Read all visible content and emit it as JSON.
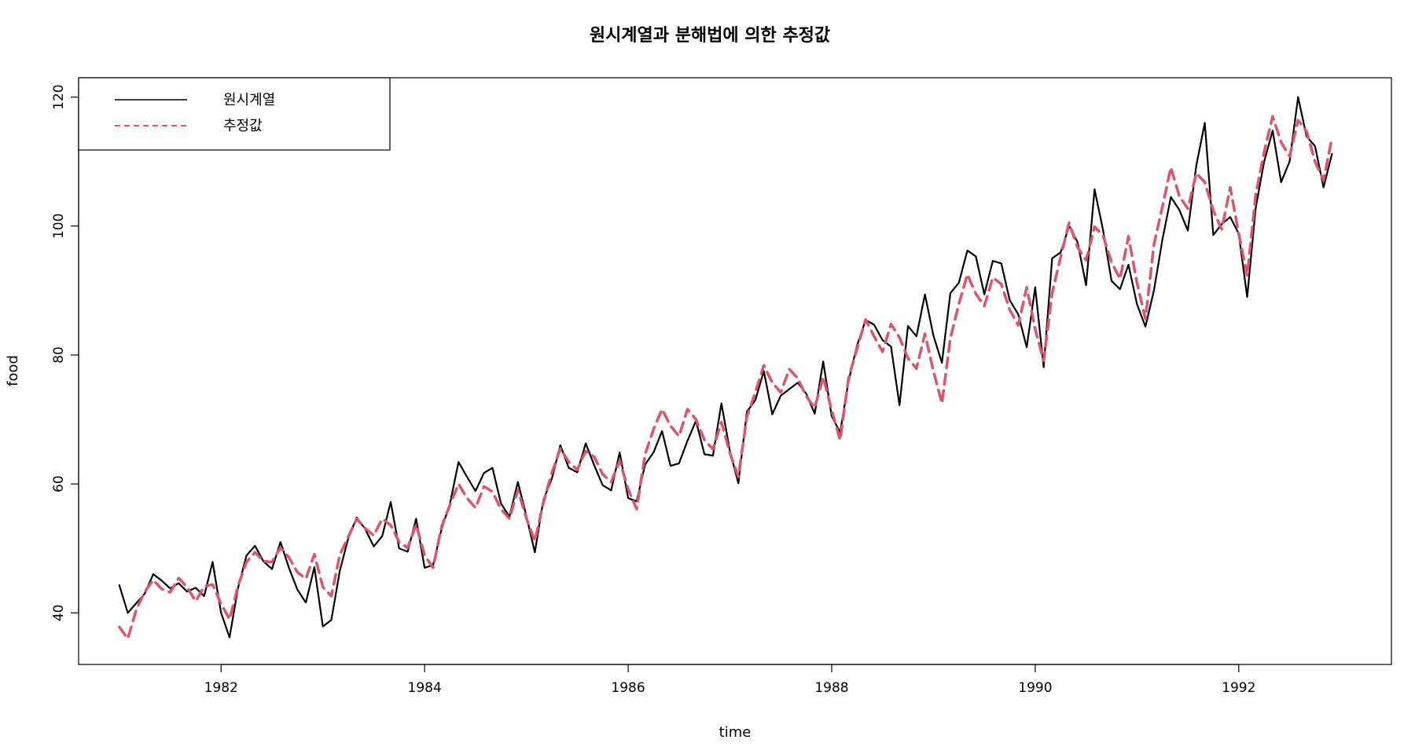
{
  "chart_data": {
    "type": "line",
    "title": "원시계열과 분해법에 의한 추정값",
    "xlabel": "time",
    "ylabel": "food",
    "xlim": [
      1980.6,
      1993.5
    ],
    "ylim": [
      32,
      123
    ],
    "x_ticks": [
      1982,
      1984,
      1986,
      1988,
      1990,
      1992
    ],
    "y_ticks": [
      40,
      60,
      80,
      100,
      120
    ],
    "x_tick_labels": [
      "1982",
      "1984",
      "1986",
      "1988",
      "1990",
      "1992"
    ],
    "y_tick_labels": [
      "40",
      "60",
      "80",
      "100",
      "120"
    ],
    "x_start": 1981.0,
    "x_step": 0.08333,
    "legend": {
      "position": "top-left"
    },
    "series": [
      {
        "name": "원시계열",
        "color": "#000000",
        "style": "solid",
        "values": [
          44.3,
          40.0,
          41.5,
          43.0,
          46.0,
          45.0,
          43.8,
          44.6,
          43.3,
          43.9,
          42.6,
          47.9,
          40.0,
          36.2,
          43.9,
          48.9,
          50.4,
          48.0,
          46.8,
          51.0,
          47.0,
          43.6,
          41.6,
          47.1,
          37.9,
          38.9,
          46.5,
          51.6,
          54.8,
          53.0,
          50.3,
          51.9,
          57.2,
          50.0,
          49.5,
          54.6,
          47.0,
          47.4,
          53.0,
          57.0,
          63.4,
          61.1,
          58.9,
          61.7,
          62.5,
          57.0,
          54.9,
          60.3,
          55.0,
          49.4,
          57.5,
          60.8,
          66.0,
          62.5,
          61.8,
          66.3,
          62.9,
          59.8,
          59.0,
          64.9,
          57.8,
          57.3,
          63.0,
          64.9,
          68.2,
          62.8,
          63.2,
          66.7,
          69.8,
          64.6,
          64.4,
          72.5,
          65.1,
          60.1,
          71.2,
          73.0,
          77.5,
          70.8,
          73.7,
          74.7,
          75.7,
          74.0,
          70.9,
          79.0,
          70.5,
          68.0,
          76.0,
          81.5,
          85.4,
          84.7,
          82.3,
          81.3,
          72.2,
          84.5,
          82.9,
          89.4,
          83.0,
          78.8,
          89.6,
          91.2,
          96.2,
          95.3,
          89.4,
          94.6,
          94.2,
          88.5,
          86.3,
          81.2,
          90.5,
          78.1,
          95.0,
          95.9,
          100.0,
          97.5,
          90.8,
          105.7,
          99.4,
          91.5,
          90.2,
          94.0,
          87.9,
          84.4,
          90.0,
          97.9,
          104.5,
          102.5,
          99.3,
          109.4,
          116.0,
          98.6,
          100.3,
          101.4,
          98.8,
          89.0,
          102.8,
          110.0,
          114.8,
          106.8,
          110.0,
          120.0,
          113.9,
          112.4,
          106.0,
          111.2
        ]
      },
      {
        "name": "추정값",
        "color": "#DF536B",
        "style": "dashed",
        "values": [
          37.8,
          36.0,
          40.5,
          43.3,
          45.1,
          43.7,
          43.2,
          45.4,
          44.0,
          41.8,
          44.1,
          44.4,
          41.4,
          39.0,
          44.2,
          47.9,
          49.4,
          48.0,
          47.9,
          50.1,
          48.6,
          46.3,
          45.3,
          49.1,
          44.0,
          42.6,
          49.0,
          51.8,
          54.6,
          53.1,
          52.0,
          54.6,
          53.6,
          51.0,
          50.1,
          53.7,
          48.9,
          47.0,
          53.4,
          56.8,
          60.0,
          57.8,
          56.3,
          59.6,
          58.8,
          56.1,
          54.6,
          59.1,
          54.7,
          51.1,
          57.1,
          61.7,
          65.5,
          63.4,
          62.2,
          65.1,
          64.2,
          61.5,
          60.3,
          63.6,
          59.2,
          56.1,
          64.6,
          68.5,
          71.6,
          69.0,
          67.4,
          71.6,
          70.0,
          66.8,
          65.4,
          69.6,
          64.8,
          61.1,
          70.4,
          74.2,
          78.4,
          75.7,
          74.2,
          77.8,
          76.4,
          73.6,
          71.8,
          76.6,
          71.4,
          66.8,
          76.5,
          81.0,
          85.5,
          82.9,
          80.5,
          84.8,
          82.7,
          79.5,
          77.9,
          83.3,
          77.5,
          72.5,
          82.6,
          87.9,
          92.5,
          89.5,
          87.6,
          92.0,
          91.0,
          87.0,
          84.6,
          90.5,
          84.0,
          79.1,
          89.6,
          95.2,
          100.5,
          96.7,
          94.7,
          99.9,
          98.5,
          94.4,
          91.8,
          98.4,
          91.2,
          85.6,
          97.1,
          103.0,
          109.1,
          104.6,
          102.7,
          108.2,
          106.8,
          102.4,
          99.5,
          106.0,
          98.8,
          92.3,
          104.8,
          111.5,
          117.0,
          113.0,
          110.8,
          116.4,
          114.7,
          110.0,
          107.1,
          113.7
        ]
      }
    ]
  }
}
